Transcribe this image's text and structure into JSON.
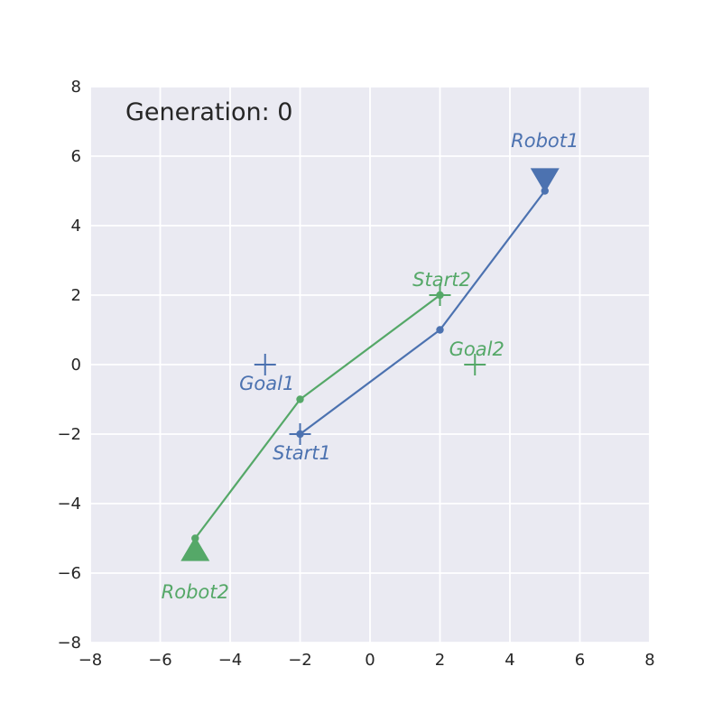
{
  "chart_data": {
    "type": "line",
    "annotation": "Generation: 0",
    "xlim": [
      -8,
      8
    ],
    "ylim": [
      -8,
      8
    ],
    "xticks": [
      -8,
      -6,
      -4,
      -2,
      0,
      2,
      4,
      6,
      8
    ],
    "yticks": [
      -8,
      -6,
      -4,
      -2,
      0,
      2,
      4,
      6,
      8
    ],
    "grid": true,
    "colors": {
      "background": "#EAEAF2",
      "grid": "#FFFFFF",
      "robot1": "#4C72B0",
      "robot2": "#55A868"
    },
    "robots": [
      {
        "name": "Robot1",
        "label": "Robot1",
        "color": "#4C72B0",
        "path": [
          [
            -2,
            -2
          ],
          [
            2,
            1
          ],
          [
            5,
            5
          ]
        ],
        "position": [
          5,
          5.3
        ],
        "marker": "triangle-down",
        "start": {
          "label": "Start1",
          "point": [
            -2,
            -2
          ]
        },
        "goal": {
          "label": "Goal1",
          "point": [
            -3,
            0
          ]
        }
      },
      {
        "name": "Robot2",
        "label": "Robot2",
        "color": "#55A868",
        "path": [
          [
            2,
            2
          ],
          [
            -2,
            -1
          ],
          [
            -5,
            -5
          ]
        ],
        "position": [
          -5,
          -5.3
        ],
        "marker": "triangle-up",
        "start": {
          "label": "Start2",
          "point": [
            2,
            2
          ]
        },
        "goal": {
          "label": "Goal2",
          "point": [
            3,
            0
          ]
        }
      }
    ]
  }
}
